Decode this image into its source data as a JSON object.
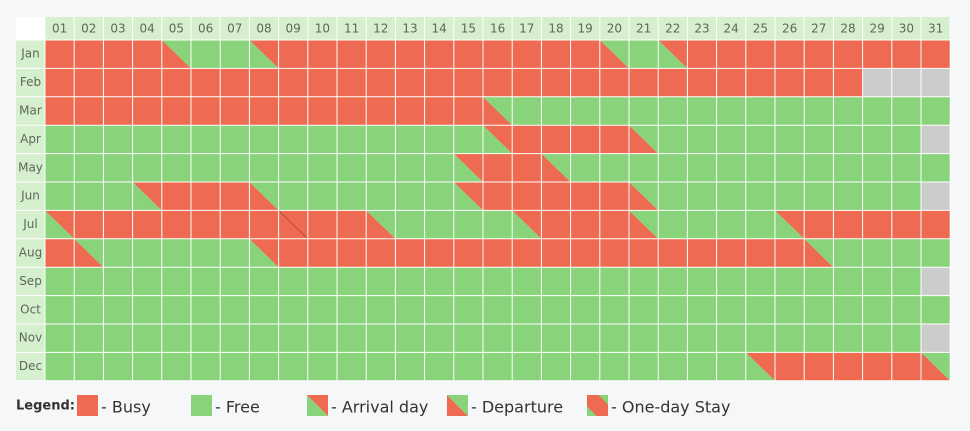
{
  "calendar": {
    "days": [
      "01",
      "02",
      "03",
      "04",
      "05",
      "06",
      "07",
      "08",
      "09",
      "10",
      "11",
      "12",
      "13",
      "14",
      "15",
      "16",
      "17",
      "18",
      "19",
      "20",
      "21",
      "22",
      "23",
      "24",
      "25",
      "26",
      "27",
      "28",
      "29",
      "30",
      "31"
    ],
    "months": [
      {
        "name": "Jan",
        "cells": [
          "B",
          "B",
          "B",
          "B",
          "D",
          "F",
          "F",
          "A",
          "B",
          "B",
          "B",
          "B",
          "B",
          "B",
          "B",
          "B",
          "B",
          "B",
          "B",
          "D",
          "F",
          "A",
          "B",
          "B",
          "B",
          "B",
          "B",
          "B",
          "B",
          "B",
          "B"
        ]
      },
      {
        "name": "Feb",
        "cells": [
          "B",
          "B",
          "B",
          "B",
          "B",
          "B",
          "B",
          "B",
          "B",
          "B",
          "B",
          "B",
          "B",
          "B",
          "B",
          "B",
          "B",
          "B",
          "B",
          "B",
          "B",
          "B",
          "B",
          "B",
          "B",
          "B",
          "B",
          "B",
          "N",
          "N",
          "N"
        ]
      },
      {
        "name": "Mar",
        "cells": [
          "B",
          "B",
          "B",
          "B",
          "B",
          "B",
          "B",
          "B",
          "B",
          "B",
          "B",
          "B",
          "B",
          "B",
          "B",
          "D",
          "F",
          "F",
          "F",
          "F",
          "F",
          "F",
          "F",
          "F",
          "F",
          "F",
          "F",
          "F",
          "F",
          "F",
          "F"
        ]
      },
      {
        "name": "Apr",
        "cells": [
          "F",
          "F",
          "F",
          "F",
          "F",
          "F",
          "F",
          "F",
          "F",
          "F",
          "F",
          "F",
          "F",
          "F",
          "F",
          "A",
          "B",
          "B",
          "B",
          "B",
          "D",
          "F",
          "F",
          "F",
          "F",
          "F",
          "F",
          "F",
          "F",
          "F",
          "N"
        ]
      },
      {
        "name": "May",
        "cells": [
          "F",
          "F",
          "F",
          "F",
          "F",
          "F",
          "F",
          "F",
          "F",
          "F",
          "F",
          "F",
          "F",
          "F",
          "A",
          "B",
          "B",
          "D",
          "F",
          "F",
          "F",
          "F",
          "F",
          "F",
          "F",
          "F",
          "F",
          "F",
          "F",
          "F",
          "F"
        ]
      },
      {
        "name": "Jun",
        "cells": [
          "F",
          "F",
          "F",
          "A",
          "B",
          "B",
          "B",
          "D",
          "F",
          "F",
          "F",
          "F",
          "F",
          "F",
          "A",
          "B",
          "B",
          "B",
          "B",
          "B",
          "D",
          "F",
          "F",
          "F",
          "F",
          "F",
          "F",
          "F",
          "F",
          "F",
          "N"
        ]
      },
      {
        "name": "Jul",
        "cells": [
          "A",
          "B",
          "B",
          "B",
          "B",
          "B",
          "B",
          "B",
          "C",
          "B",
          "B",
          "D",
          "F",
          "F",
          "F",
          "F",
          "A",
          "B",
          "B",
          "B",
          "D",
          "F",
          "F",
          "F",
          "F",
          "A",
          "B",
          "B",
          "B",
          "B",
          "B"
        ]
      },
      {
        "name": "Aug",
        "cells": [
          "B",
          "D",
          "F",
          "F",
          "F",
          "F",
          "F",
          "A",
          "B",
          "B",
          "B",
          "B",
          "B",
          "B",
          "B",
          "B",
          "B",
          "B",
          "B",
          "B",
          "B",
          "B",
          "B",
          "B",
          "B",
          "B",
          "D",
          "F",
          "F",
          "F",
          "F"
        ]
      },
      {
        "name": "Sep",
        "cells": [
          "F",
          "F",
          "F",
          "F",
          "F",
          "F",
          "F",
          "F",
          "F",
          "F",
          "F",
          "F",
          "F",
          "F",
          "F",
          "F",
          "F",
          "F",
          "F",
          "F",
          "F",
          "F",
          "F",
          "F",
          "F",
          "F",
          "F",
          "F",
          "F",
          "F",
          "N"
        ]
      },
      {
        "name": "Oct",
        "cells": [
          "F",
          "F",
          "F",
          "F",
          "F",
          "F",
          "F",
          "F",
          "F",
          "F",
          "F",
          "F",
          "F",
          "F",
          "F",
          "F",
          "F",
          "F",
          "F",
          "F",
          "F",
          "F",
          "F",
          "F",
          "F",
          "F",
          "F",
          "F",
          "F",
          "F",
          "F"
        ]
      },
      {
        "name": "Nov",
        "cells": [
          "F",
          "F",
          "F",
          "F",
          "F",
          "F",
          "F",
          "F",
          "F",
          "F",
          "F",
          "F",
          "F",
          "F",
          "F",
          "F",
          "F",
          "F",
          "F",
          "F",
          "F",
          "F",
          "F",
          "F",
          "F",
          "F",
          "F",
          "F",
          "F",
          "F",
          "N"
        ]
      },
      {
        "name": "Dec",
        "cells": [
          "F",
          "F",
          "F",
          "F",
          "F",
          "F",
          "F",
          "F",
          "F",
          "F",
          "F",
          "F",
          "F",
          "F",
          "F",
          "F",
          "F",
          "F",
          "F",
          "F",
          "F",
          "F",
          "F",
          "F",
          "A",
          "B",
          "B",
          "B",
          "B",
          "B",
          "D"
        ]
      }
    ]
  },
  "legend": {
    "title": "Legend:",
    "items": [
      "- Busy",
      "- Free",
      "- Arrival day",
      "- Departure",
      "- One-day Stay"
    ]
  }
}
